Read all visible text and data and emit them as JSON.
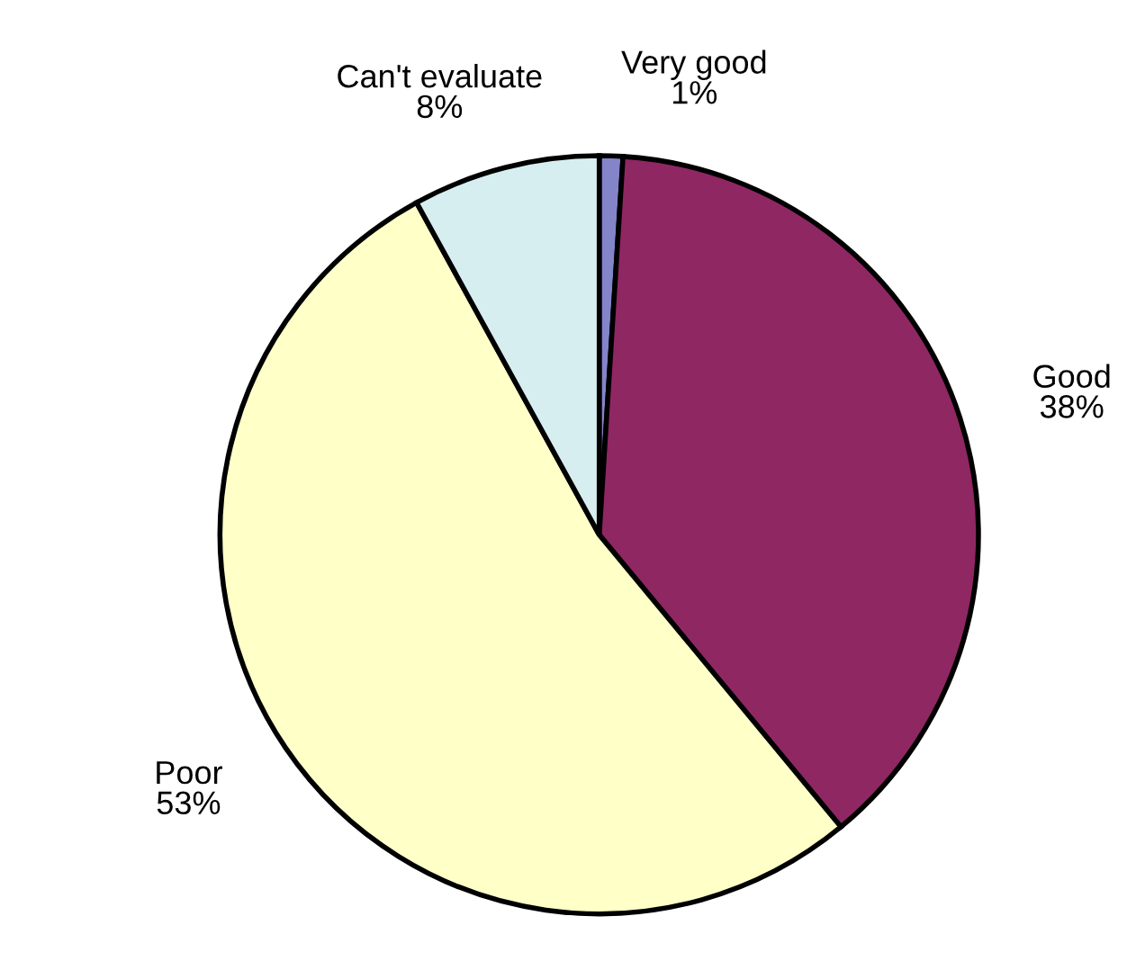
{
  "chart_data": {
    "type": "pie",
    "categories": [
      "Very good",
      "Good",
      "Poor",
      "Can't evaluate"
    ],
    "values": [
      1,
      38,
      53,
      8
    ],
    "colors": [
      "#8484c8",
      "#8f2763",
      "#ffffc8",
      "#d7eef0"
    ],
    "value_labels": [
      "1%",
      "38%",
      "53%",
      "8%"
    ]
  }
}
